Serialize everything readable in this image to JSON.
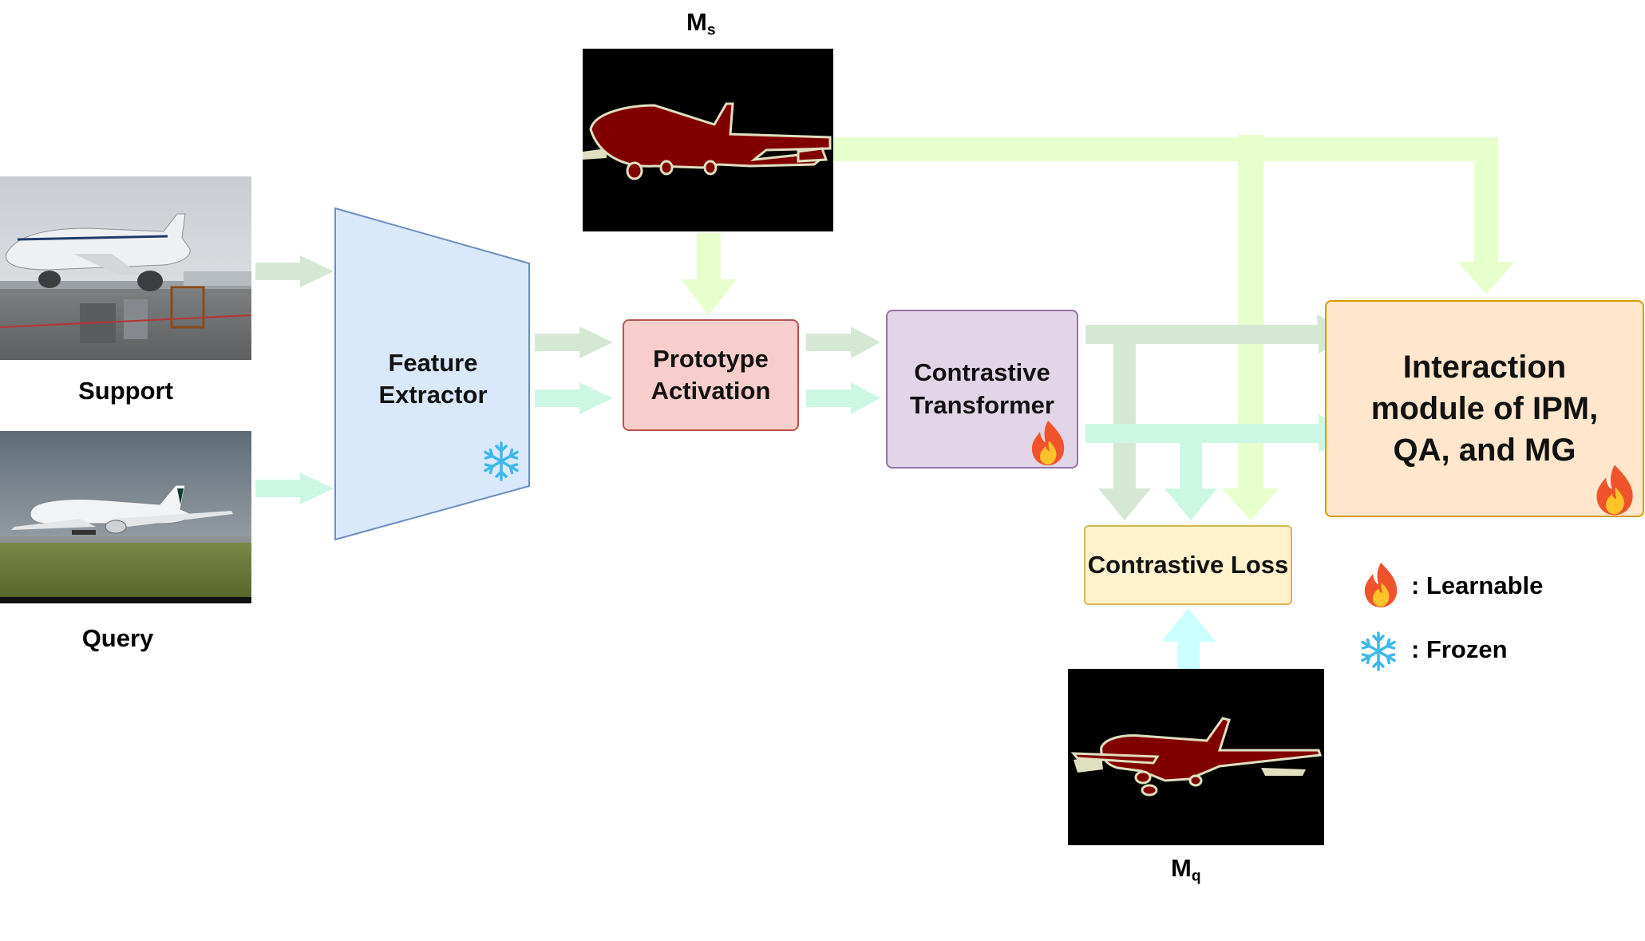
{
  "labels": {
    "support": "Support",
    "query": "Query",
    "ms_main": "M",
    "ms_sub": "s",
    "mq_main": "M",
    "mq_sub": "q"
  },
  "blocks": {
    "feature_extractor": "Feature Extractor",
    "prototype_activation": "Prototype Activation",
    "contrastive_transformer": "Contrastive Transformer",
    "contrastive_loss": "Contrastive Loss",
    "interaction_module": "Interaction module of IPM, QA, and MG"
  },
  "legend": {
    "learnable": ": Learnable",
    "frozen": ": Frozen"
  },
  "icons": {
    "learnable": "fire-icon",
    "frozen": "snowflake-icon"
  },
  "colors": {
    "arrow_green": "#d5e8d4",
    "arrow_mint": "#ccf7e3",
    "arrow_lime": "#e6ffcc",
    "arrow_cyan": "#ccffff",
    "feature_extractor_fill": "#dae8fc",
    "prototype_fill": "#f8cecc",
    "transformer_fill": "#e1d5e7",
    "loss_fill": "#fff2cc",
    "interaction_fill": "#ffe6cc",
    "mask_object": "#800000",
    "mask_edge": "#e0dfc0"
  }
}
